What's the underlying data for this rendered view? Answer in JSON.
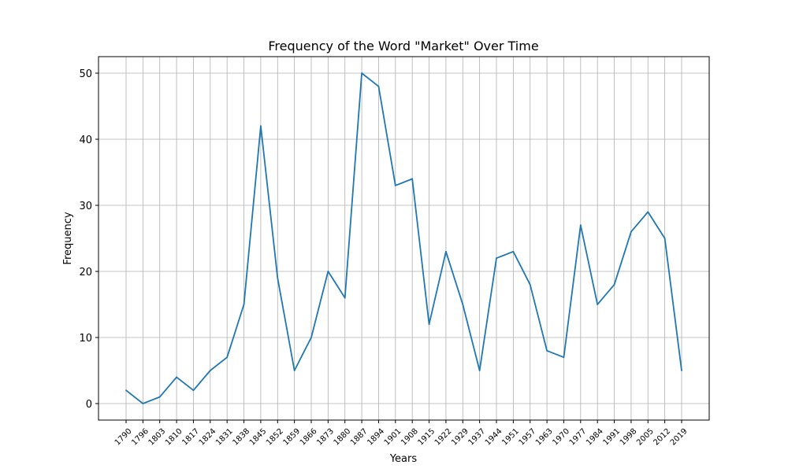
{
  "chart_data": {
    "type": "line",
    "title": "Frequency of the Word \"Market\" Over Time",
    "xlabel": "Years",
    "ylabel": "Frequency",
    "grid": true,
    "ylim": [
      -2.5,
      52.5
    ],
    "yticks": [
      0,
      10,
      20,
      30,
      40,
      50
    ],
    "x": [
      "1790",
      "1796",
      "1803",
      "1810",
      "1817",
      "1824",
      "1831",
      "1838",
      "1845",
      "1852",
      "1859",
      "1866",
      "1873",
      "1880",
      "1887",
      "1894",
      "1901",
      "1908",
      "1915",
      "1922",
      "1929",
      "1937",
      "1944",
      "1951",
      "1957",
      "1963",
      "1970",
      "1977",
      "1984",
      "1991",
      "1998",
      "2005",
      "2012",
      "2019"
    ],
    "series": [
      {
        "values": [
          2,
          0,
          1,
          4,
          2,
          5,
          7,
          15,
          42,
          19,
          5,
          10,
          20,
          16,
          50,
          48,
          33,
          34,
          12,
          23,
          15,
          5,
          22,
          23,
          18,
          8,
          7,
          27,
          15,
          18,
          26,
          29,
          25,
          5
        ],
        "color": "#1f77b4"
      }
    ]
  }
}
